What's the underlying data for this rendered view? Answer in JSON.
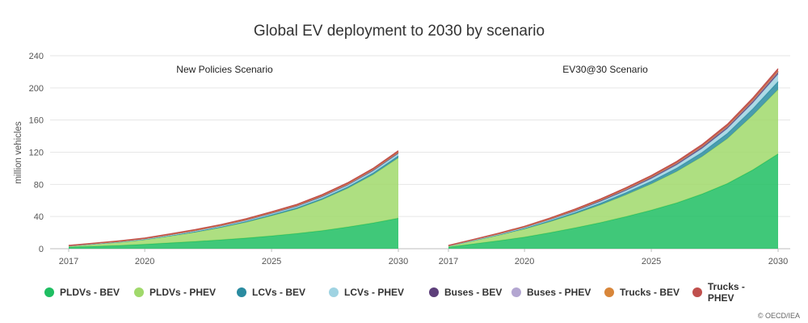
{
  "chart_data": {
    "type": "area",
    "title": "Global EV deployment to 2030 by scenario",
    "ylabel": "million vehicles",
    "ylim": [
      0,
      240
    ],
    "yticks": [
      0,
      40,
      80,
      120,
      160,
      200,
      240
    ],
    "xticks": [
      2017,
      2020,
      2025,
      2030
    ],
    "x": [
      2017,
      2018,
      2019,
      2020,
      2021,
      2022,
      2023,
      2024,
      2025,
      2026,
      2027,
      2028,
      2029,
      2030
    ],
    "stacked": true,
    "grid": true,
    "legend_position": "bottom",
    "series_meta": [
      {
        "name": "PLDVs - BEV",
        "color": "#1fbe62"
      },
      {
        "name": "PLDVs - PHEV",
        "color": "#a0d96b"
      },
      {
        "name": "LCVs - BEV",
        "color": "#2a8ba0"
      },
      {
        "name": "LCVs - PHEV",
        "color": "#9fd3e2"
      },
      {
        "name": "Buses - BEV",
        "color": "#5d3f7a"
      },
      {
        "name": "Buses - PHEV",
        "color": "#b3a6d1"
      },
      {
        "name": "Trucks - BEV",
        "color": "#d8863a"
      },
      {
        "name": "Trucks - PHEV",
        "color": "#c0504d"
      }
    ],
    "panels": [
      {
        "title": "New Policies Scenario",
        "series": [
          {
            "name": "PLDVs - BEV",
            "values": [
              2.0,
              3.0,
              4.0,
              5.5,
              7.2,
              9.0,
              11.0,
              13.3,
              16.0,
              19.0,
              22.5,
              27.0,
              32.0,
              38.0
            ]
          },
          {
            "name": "PLDVs - PHEV",
            "values": [
              1.2,
              2.6,
              4.0,
              5.6,
              8.5,
              11.5,
              15.2,
              19.5,
              25.0,
              30.5,
              38.5,
              48.0,
              60.0,
              75.0
            ]
          },
          {
            "name": "LCVs - BEV",
            "values": [
              0.1,
              0.2,
              0.3,
              0.4,
              0.5,
              0.7,
              0.8,
              1.0,
              1.2,
              1.4,
              1.6,
              1.8,
              2.2,
              2.6
            ]
          },
          {
            "name": "LCVs - PHEV",
            "values": [
              0.1,
              0.2,
              0.3,
              0.4,
              0.6,
              0.8,
              1.0,
              1.2,
              1.4,
              1.6,
              1.8,
              2.0,
              2.3,
              2.6
            ]
          },
          {
            "name": "Buses - BEV",
            "values": [
              0.35,
              0.45,
              0.55,
              0.65,
              0.75,
              0.85,
              0.95,
              1.0,
              1.1,
              1.2,
              1.3,
              1.4,
              1.5,
              1.6
            ]
          },
          {
            "name": "Buses - PHEV",
            "values": [
              0.05,
              0.05,
              0.06,
              0.07,
              0.08,
              0.09,
              0.1,
              0.11,
              0.12,
              0.13,
              0.14,
              0.15,
              0.16,
              0.17
            ]
          },
          {
            "name": "Trucks - BEV",
            "values": [
              0.01,
              0.02,
              0.03,
              0.04,
              0.05,
              0.06,
              0.08,
              0.1,
              0.12,
              0.14,
              0.16,
              0.18,
              0.2,
              0.22
            ]
          },
          {
            "name": "Trucks - PHEV",
            "values": [
              0.3,
              0.4,
              0.5,
              0.6,
              0.7,
              0.8,
              0.9,
              1.0,
              1.1,
              1.2,
              1.3,
              1.4,
              1.5,
              1.6
            ]
          }
        ]
      },
      {
        "title": "EV30@30 Scenario",
        "series": [
          {
            "name": "PLDVs - BEV",
            "values": [
              2.0,
              6.0,
              10.0,
              14.5,
              20.0,
              26.0,
              32.5,
              40.0,
              48.0,
              57.0,
              68.0,
              81.0,
              98.0,
              118.0
            ]
          },
          {
            "name": "PLDVs - PHEV",
            "values": [
              1.2,
              4.0,
              7.0,
              10.0,
              13.5,
              17.5,
              22.0,
              27.0,
              32.5,
              39.0,
              46.5,
              56.0,
              68.0,
              80.0
            ]
          },
          {
            "name": "LCVs - BEV",
            "values": [
              0.1,
              0.3,
              0.5,
              0.8,
              1.2,
              1.6,
              2.2,
              2.8,
              3.5,
              4.3,
              5.3,
              6.5,
              8.0,
              10.0
            ]
          },
          {
            "name": "LCVs - PHEV",
            "values": [
              0.1,
              0.3,
              0.5,
              0.8,
              1.1,
              1.5,
              2.0,
              2.5,
              3.1,
              3.8,
              4.7,
              5.8,
              7.2,
              9.0
            ]
          },
          {
            "name": "Buses - BEV",
            "values": [
              0.35,
              0.5,
              0.7,
              0.9,
              1.1,
              1.3,
              1.5,
              1.7,
              1.9,
              2.1,
              2.3,
              2.5,
              2.7,
              3.0
            ]
          },
          {
            "name": "Buses - PHEV",
            "values": [
              0.05,
              0.08,
              0.1,
              0.12,
              0.15,
              0.18,
              0.21,
              0.24,
              0.27,
              0.3,
              0.33,
              0.36,
              0.4,
              0.45
            ]
          },
          {
            "name": "Trucks - BEV",
            "values": [
              0.01,
              0.03,
              0.05,
              0.08,
              0.12,
              0.16,
              0.2,
              0.25,
              0.3,
              0.36,
              0.42,
              0.5,
              0.6,
              0.7
            ]
          },
          {
            "name": "Trucks - PHEV",
            "values": [
              0.3,
              0.45,
              0.6,
              0.75,
              0.9,
              1.05,
              1.2,
              1.35,
              1.5,
              1.7,
              1.9,
              2.1,
              2.4,
              2.8
            ]
          }
        ]
      }
    ]
  },
  "credit": "© OECD/IEA"
}
